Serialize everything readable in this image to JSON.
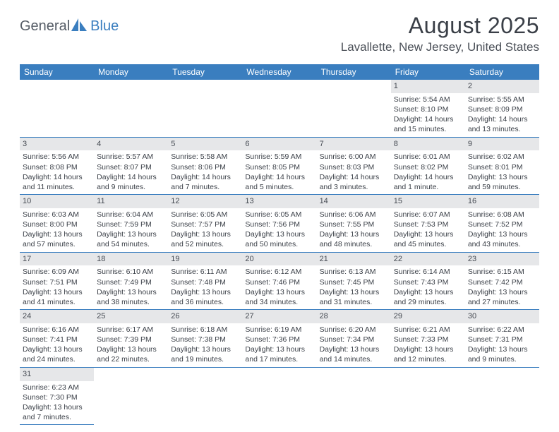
{
  "logo": {
    "part1": "General",
    "part2": "Blue"
  },
  "title": "August 2025",
  "location": "Lavallette, New Jersey, United States",
  "colors": {
    "header_bg": "#3a7ebf",
    "daynum_bg": "#e6e7e9",
    "border": "#3a7ebf",
    "title_text": "#3a3f47",
    "body_text": "#3a3f47",
    "logo_gray": "#555c66",
    "logo_blue": "#3a7ebf"
  },
  "typography": {
    "title_fontsize": 32,
    "location_fontsize": 17,
    "weekday_fontsize": 12,
    "cell_fontsize": 10.5
  },
  "weekdays": [
    "Sunday",
    "Monday",
    "Tuesday",
    "Wednesday",
    "Thursday",
    "Friday",
    "Saturday"
  ],
  "weeks": [
    [
      {
        "n": "",
        "sr": "",
        "ss": "",
        "dl": ""
      },
      {
        "n": "",
        "sr": "",
        "ss": "",
        "dl": ""
      },
      {
        "n": "",
        "sr": "",
        "ss": "",
        "dl": ""
      },
      {
        "n": "",
        "sr": "",
        "ss": "",
        "dl": ""
      },
      {
        "n": "",
        "sr": "",
        "ss": "",
        "dl": ""
      },
      {
        "n": "1",
        "sr": "Sunrise: 5:54 AM",
        "ss": "Sunset: 8:10 PM",
        "dl": "Daylight: 14 hours and 15 minutes."
      },
      {
        "n": "2",
        "sr": "Sunrise: 5:55 AM",
        "ss": "Sunset: 8:09 PM",
        "dl": "Daylight: 14 hours and 13 minutes."
      }
    ],
    [
      {
        "n": "3",
        "sr": "Sunrise: 5:56 AM",
        "ss": "Sunset: 8:08 PM",
        "dl": "Daylight: 14 hours and 11 minutes."
      },
      {
        "n": "4",
        "sr": "Sunrise: 5:57 AM",
        "ss": "Sunset: 8:07 PM",
        "dl": "Daylight: 14 hours and 9 minutes."
      },
      {
        "n": "5",
        "sr": "Sunrise: 5:58 AM",
        "ss": "Sunset: 8:06 PM",
        "dl": "Daylight: 14 hours and 7 minutes."
      },
      {
        "n": "6",
        "sr": "Sunrise: 5:59 AM",
        "ss": "Sunset: 8:05 PM",
        "dl": "Daylight: 14 hours and 5 minutes."
      },
      {
        "n": "7",
        "sr": "Sunrise: 6:00 AM",
        "ss": "Sunset: 8:03 PM",
        "dl": "Daylight: 14 hours and 3 minutes."
      },
      {
        "n": "8",
        "sr": "Sunrise: 6:01 AM",
        "ss": "Sunset: 8:02 PM",
        "dl": "Daylight: 14 hours and 1 minute."
      },
      {
        "n": "9",
        "sr": "Sunrise: 6:02 AM",
        "ss": "Sunset: 8:01 PM",
        "dl": "Daylight: 13 hours and 59 minutes."
      }
    ],
    [
      {
        "n": "10",
        "sr": "Sunrise: 6:03 AM",
        "ss": "Sunset: 8:00 PM",
        "dl": "Daylight: 13 hours and 57 minutes."
      },
      {
        "n": "11",
        "sr": "Sunrise: 6:04 AM",
        "ss": "Sunset: 7:59 PM",
        "dl": "Daylight: 13 hours and 54 minutes."
      },
      {
        "n": "12",
        "sr": "Sunrise: 6:05 AM",
        "ss": "Sunset: 7:57 PM",
        "dl": "Daylight: 13 hours and 52 minutes."
      },
      {
        "n": "13",
        "sr": "Sunrise: 6:05 AM",
        "ss": "Sunset: 7:56 PM",
        "dl": "Daylight: 13 hours and 50 minutes."
      },
      {
        "n": "14",
        "sr": "Sunrise: 6:06 AM",
        "ss": "Sunset: 7:55 PM",
        "dl": "Daylight: 13 hours and 48 minutes."
      },
      {
        "n": "15",
        "sr": "Sunrise: 6:07 AM",
        "ss": "Sunset: 7:53 PM",
        "dl": "Daylight: 13 hours and 45 minutes."
      },
      {
        "n": "16",
        "sr": "Sunrise: 6:08 AM",
        "ss": "Sunset: 7:52 PM",
        "dl": "Daylight: 13 hours and 43 minutes."
      }
    ],
    [
      {
        "n": "17",
        "sr": "Sunrise: 6:09 AM",
        "ss": "Sunset: 7:51 PM",
        "dl": "Daylight: 13 hours and 41 minutes."
      },
      {
        "n": "18",
        "sr": "Sunrise: 6:10 AM",
        "ss": "Sunset: 7:49 PM",
        "dl": "Daylight: 13 hours and 38 minutes."
      },
      {
        "n": "19",
        "sr": "Sunrise: 6:11 AM",
        "ss": "Sunset: 7:48 PM",
        "dl": "Daylight: 13 hours and 36 minutes."
      },
      {
        "n": "20",
        "sr": "Sunrise: 6:12 AM",
        "ss": "Sunset: 7:46 PM",
        "dl": "Daylight: 13 hours and 34 minutes."
      },
      {
        "n": "21",
        "sr": "Sunrise: 6:13 AM",
        "ss": "Sunset: 7:45 PM",
        "dl": "Daylight: 13 hours and 31 minutes."
      },
      {
        "n": "22",
        "sr": "Sunrise: 6:14 AM",
        "ss": "Sunset: 7:43 PM",
        "dl": "Daylight: 13 hours and 29 minutes."
      },
      {
        "n": "23",
        "sr": "Sunrise: 6:15 AM",
        "ss": "Sunset: 7:42 PM",
        "dl": "Daylight: 13 hours and 27 minutes."
      }
    ],
    [
      {
        "n": "24",
        "sr": "Sunrise: 6:16 AM",
        "ss": "Sunset: 7:41 PM",
        "dl": "Daylight: 13 hours and 24 minutes."
      },
      {
        "n": "25",
        "sr": "Sunrise: 6:17 AM",
        "ss": "Sunset: 7:39 PM",
        "dl": "Daylight: 13 hours and 22 minutes."
      },
      {
        "n": "26",
        "sr": "Sunrise: 6:18 AM",
        "ss": "Sunset: 7:38 PM",
        "dl": "Daylight: 13 hours and 19 minutes."
      },
      {
        "n": "27",
        "sr": "Sunrise: 6:19 AM",
        "ss": "Sunset: 7:36 PM",
        "dl": "Daylight: 13 hours and 17 minutes."
      },
      {
        "n": "28",
        "sr": "Sunrise: 6:20 AM",
        "ss": "Sunset: 7:34 PM",
        "dl": "Daylight: 13 hours and 14 minutes."
      },
      {
        "n": "29",
        "sr": "Sunrise: 6:21 AM",
        "ss": "Sunset: 7:33 PM",
        "dl": "Daylight: 13 hours and 12 minutes."
      },
      {
        "n": "30",
        "sr": "Sunrise: 6:22 AM",
        "ss": "Sunset: 7:31 PM",
        "dl": "Daylight: 13 hours and 9 minutes."
      }
    ],
    [
      {
        "n": "31",
        "sr": "Sunrise: 6:23 AM",
        "ss": "Sunset: 7:30 PM",
        "dl": "Daylight: 13 hours and 7 minutes."
      },
      {
        "n": "",
        "sr": "",
        "ss": "",
        "dl": ""
      },
      {
        "n": "",
        "sr": "",
        "ss": "",
        "dl": ""
      },
      {
        "n": "",
        "sr": "",
        "ss": "",
        "dl": ""
      },
      {
        "n": "",
        "sr": "",
        "ss": "",
        "dl": ""
      },
      {
        "n": "",
        "sr": "",
        "ss": "",
        "dl": ""
      },
      {
        "n": "",
        "sr": "",
        "ss": "",
        "dl": ""
      }
    ]
  ]
}
